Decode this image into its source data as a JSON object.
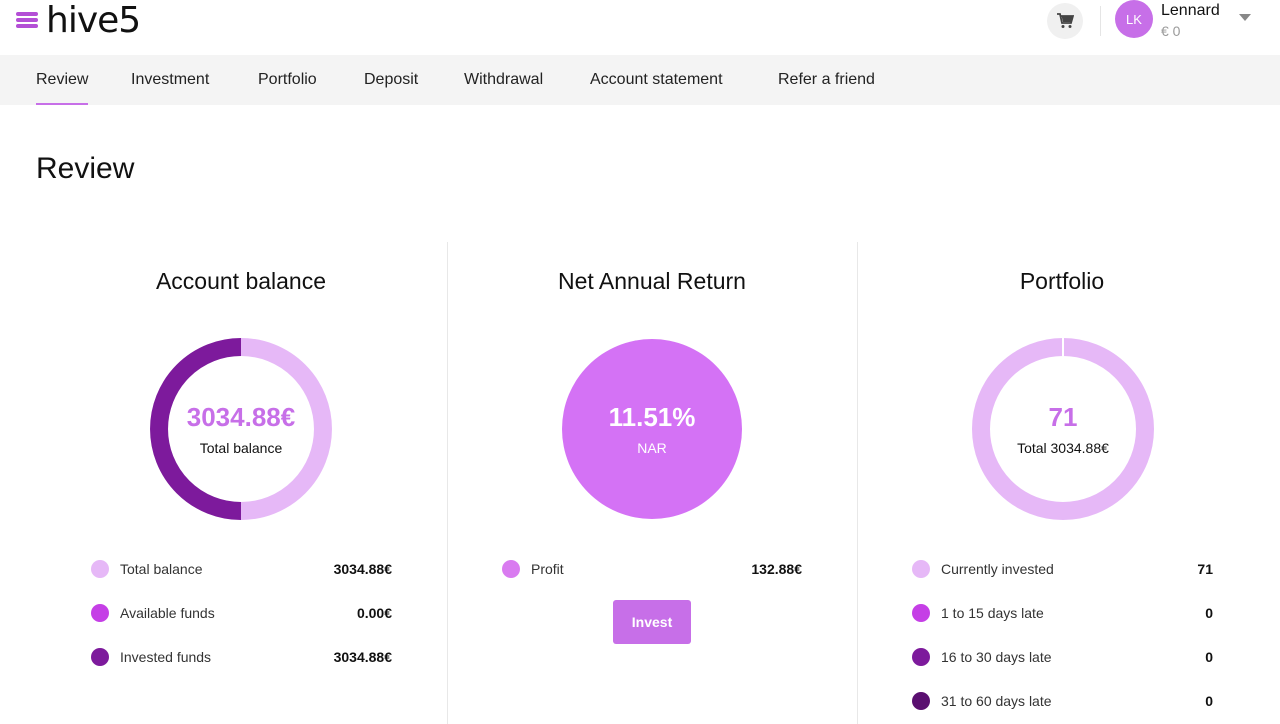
{
  "header": {
    "logo_text": "hive5",
    "user": {
      "initials": "LK",
      "name": "Lennard",
      "balance": "€ 0"
    }
  },
  "nav": {
    "tabs": [
      {
        "label": "Review",
        "active": true
      },
      {
        "label": "Investment"
      },
      {
        "label": "Portfolio"
      },
      {
        "label": "Deposit"
      },
      {
        "label": "Withdrawal"
      },
      {
        "label": "Account statement"
      },
      {
        "label": "Refer a friend"
      }
    ]
  },
  "page": {
    "title": "Review"
  },
  "cards": {
    "account_balance": {
      "title": "Account balance",
      "center_value": "3034.88€",
      "center_label": "Total balance",
      "legend": [
        {
          "label": "Total balance",
          "value": "3034.88€",
          "color": "#e6b8f7"
        },
        {
          "label": "Available funds",
          "value": "0.00€",
          "color": "#c53fe6"
        },
        {
          "label": "Invested funds",
          "value": "3034.88€",
          "color": "#7d1a9c"
        }
      ]
    },
    "net_annual_return": {
      "title": "Net Annual Return",
      "center_value": "11.51%",
      "center_label": "NAR",
      "legend": [
        {
          "label": "Profit",
          "value": "132.88€",
          "color": "#d97bf0"
        }
      ],
      "invest_label": "Invest"
    },
    "portfolio": {
      "title": "Portfolio",
      "center_value": "71",
      "center_label": "Total 3034.88€",
      "legend": [
        {
          "label": "Currently invested",
          "value": "71",
          "color": "#e6b8f7"
        },
        {
          "label": "1 to 15 days late",
          "value": "0",
          "color": "#c53fe6"
        },
        {
          "label": "16 to 30 days late",
          "value": "0",
          "color": "#7d1a9c"
        },
        {
          "label": "31 to 60 days late",
          "value": "0",
          "color": "#5a0f70"
        }
      ]
    }
  },
  "colors": {
    "accent": "#c76fe8",
    "ring_light": "#e6b8f7",
    "ring_dark": "#7d1a9c",
    "nar_fill": "#d472f5"
  }
}
